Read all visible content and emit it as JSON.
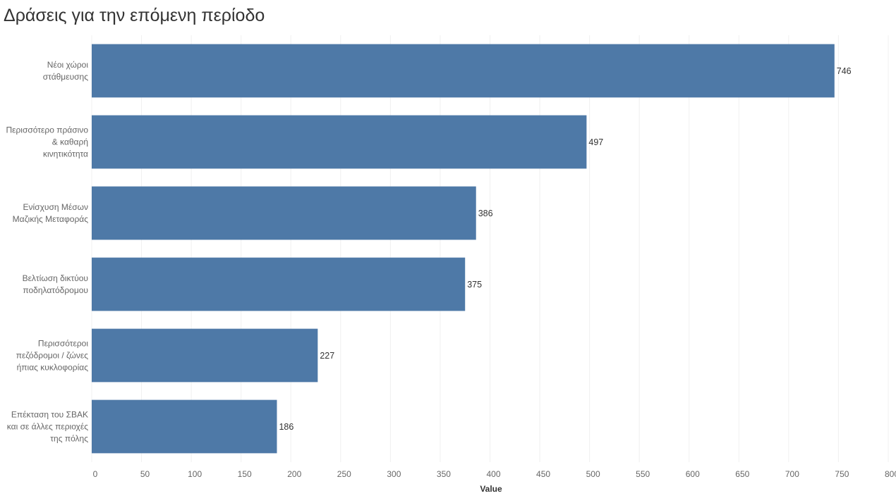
{
  "chart_data": {
    "type": "bar",
    "orientation": "horizontal",
    "title": "Δράσεις για την επόμενη περίοδο",
    "xlabel": "Value",
    "ylabel": "",
    "categories": [
      [
        "Νέοι χώροι",
        "στάθμευσης"
      ],
      [
        "Περισσότερο πράσινο",
        "& καθαρή",
        "κινητικότητα"
      ],
      [
        "Ενίσχυση Μέσων",
        "Μαζικής Μεταφοράς"
      ],
      [
        "Βελτίωση δικτύου",
        "ποδηλατόδρομου"
      ],
      [
        "Περισσότεροι",
        "πεζόδρομοι / ζώνες",
        "ήπιας κυκλοφορίας"
      ],
      [
        "Επέκταση του ΣΒΑΚ",
        "και σε άλλες περιοχές",
        "της πόλης"
      ]
    ],
    "values": [
      746,
      497,
      386,
      375,
      227,
      186
    ],
    "xlim": [
      0,
      800
    ],
    "xticks": [
      0,
      50,
      100,
      150,
      200,
      250,
      300,
      350,
      400,
      450,
      500,
      550,
      600,
      650,
      700,
      750,
      800
    ],
    "grid": "vertical",
    "data_labels": true,
    "bar_color": "#4e79a7",
    "grid_color": "#f0f0f0"
  }
}
